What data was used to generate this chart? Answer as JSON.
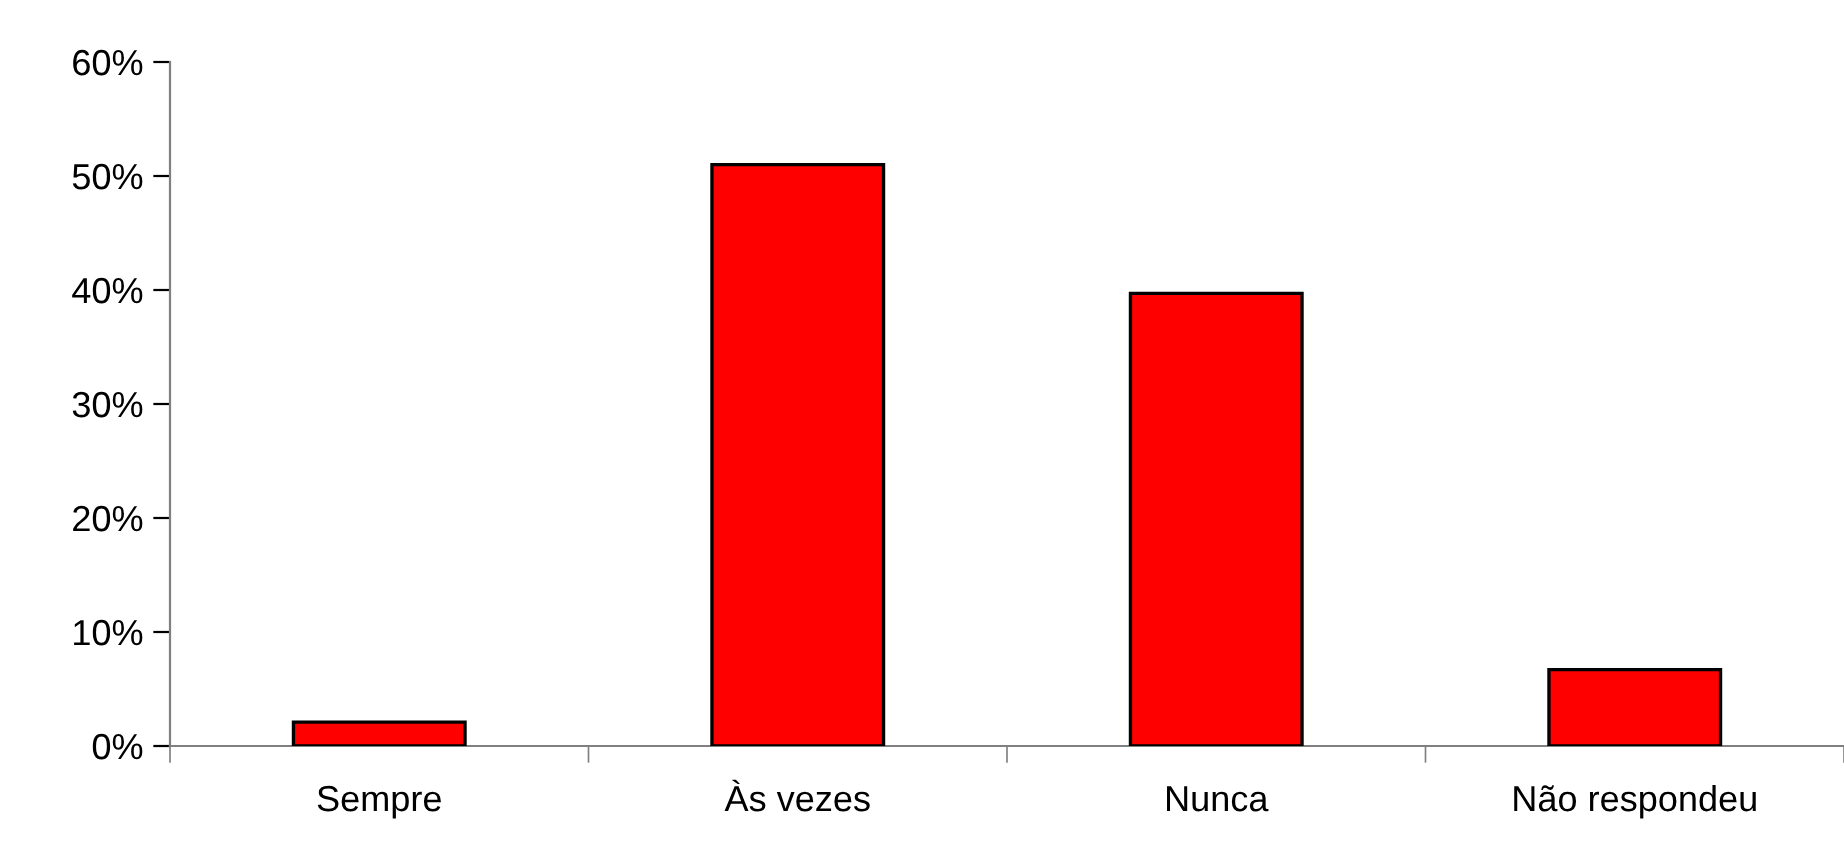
{
  "chart_data": {
    "type": "bar",
    "categories": [
      "Sempre",
      "Às vezes",
      "Nunca",
      "Não respondeu"
    ],
    "values": [
      2.1,
      51.0,
      39.7,
      6.7
    ],
    "color": "#ff0000",
    "ylim": [
      0,
      60
    ],
    "yticks": [
      {
        "value": 0,
        "label": "0%"
      },
      {
        "value": 10,
        "label": "10%"
      },
      {
        "value": 20,
        "label": "20%"
      },
      {
        "value": 30,
        "label": "30%"
      },
      {
        "value": 40,
        "label": "40%"
      },
      {
        "value": 50,
        "label": "50%"
      },
      {
        "value": 60,
        "label": "60%"
      }
    ],
    "grid": false,
    "legend": false
  }
}
